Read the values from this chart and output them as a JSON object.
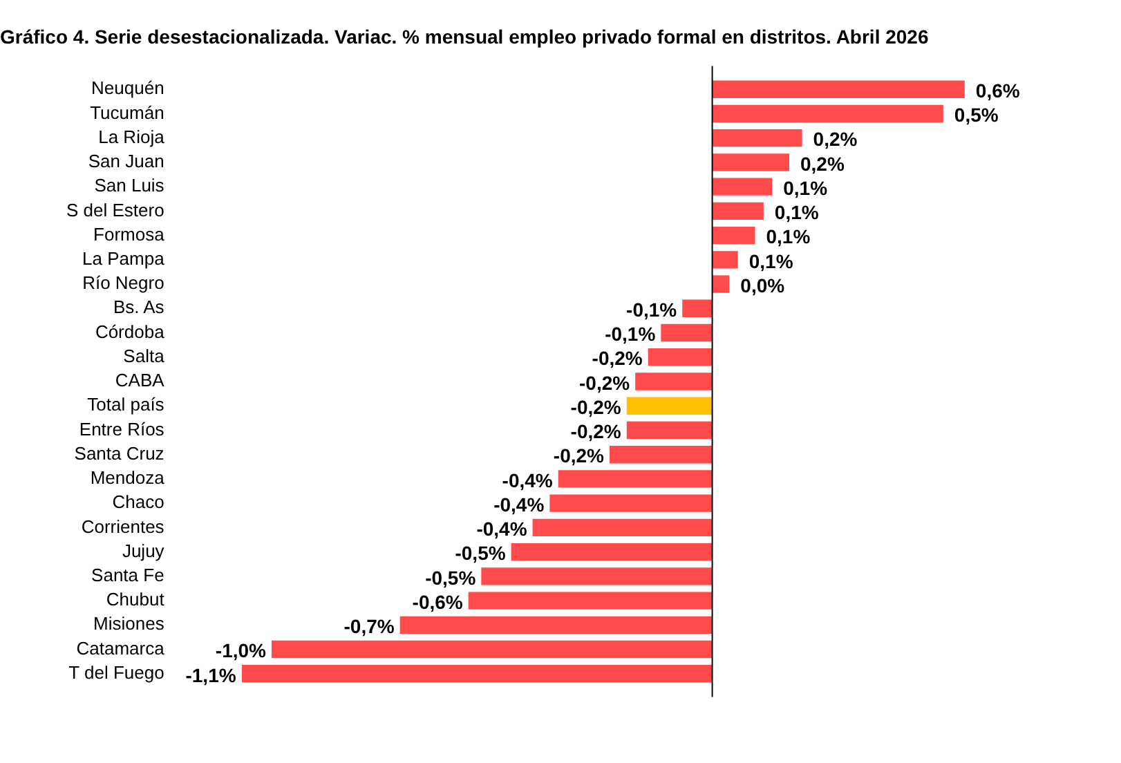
{
  "chart_data": {
    "type": "bar",
    "orientation": "horizontal",
    "title": "Gráfico 4. Serie desestacionalizada. Variac. % mensual empleo privado formal en distritos. Abril 2026",
    "categories": [
      "Neuquén",
      "Tucumán",
      "La Rioja",
      "San Juan",
      "San Luis",
      "S del Estero",
      "Formosa",
      "La Pampa",
      "Río Negro",
      "Bs. As",
      "Córdoba",
      "Salta",
      "CABA",
      "Total país",
      "Entre Ríos",
      "Santa Cruz",
      "Mendoza",
      "Chaco",
      "Corrientes",
      "Jujuy",
      "Santa Fe",
      "Chubut",
      "Misiones",
      "Catamarca",
      "T del Fuego"
    ],
    "values": [
      0.59,
      0.54,
      0.21,
      0.18,
      0.14,
      0.12,
      0.1,
      0.06,
      0.04,
      -0.07,
      -0.12,
      -0.15,
      -0.18,
      -0.2,
      -0.2,
      -0.24,
      -0.36,
      -0.38,
      -0.42,
      -0.47,
      -0.54,
      -0.57,
      -0.73,
      -1.03,
      -1.1
    ],
    "value_labels": [
      "0,6%",
      "0,5%",
      "0,2%",
      "0,2%",
      "0,1%",
      "0,1%",
      "0,1%",
      "0,1%",
      "0,0%",
      "-0,1%",
      "-0,1%",
      "-0,2%",
      "-0,2%",
      "-0,2%",
      "-0,2%",
      "-0,2%",
      "-0,4%",
      "-0,4%",
      "-0,4%",
      "-0,5%",
      "-0,5%",
      "-0,6%",
      "-0,7%",
      "-1,0%",
      "-1,1%"
    ],
    "colors": [
      "#ff4b4b",
      "#ff4b4b",
      "#ff4b4b",
      "#ff4b4b",
      "#ff4b4b",
      "#ff4b4b",
      "#ff4b4b",
      "#ff4b4b",
      "#ff4b4b",
      "#ff4b4b",
      "#ff4b4b",
      "#ff4b4b",
      "#ff4b4b",
      "#ffc000",
      "#ff4b4b",
      "#ff4b4b",
      "#ff4b4b",
      "#ff4b4b",
      "#ff4b4b",
      "#ff4b4b",
      "#ff4b4b",
      "#ff4b4b",
      "#ff4b4b",
      "#ff4b4b",
      "#ff4b4b"
    ],
    "xlim": [
      -1.1,
      0.6
    ],
    "tick_labels": "y",
    "legend": false
  }
}
